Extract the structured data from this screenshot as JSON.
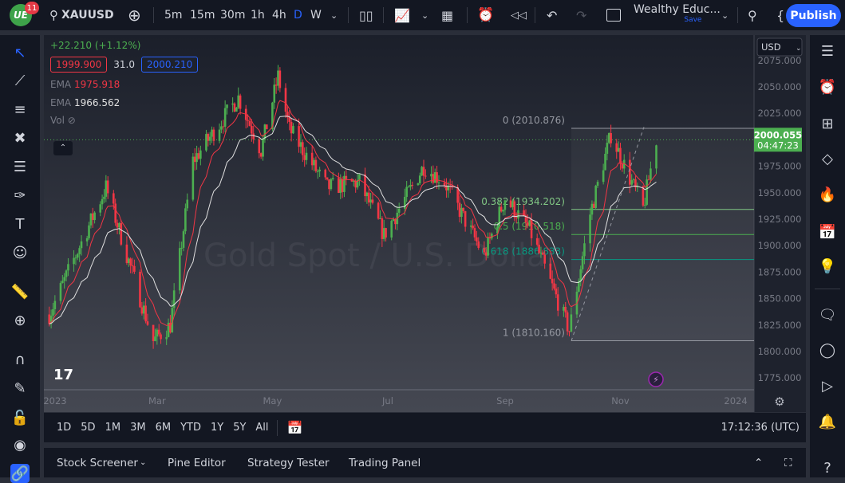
{
  "header": {
    "notifications": "11",
    "symbol": "XAUUSD",
    "intervals": [
      "5m",
      "15m",
      "30m",
      "1h",
      "4h",
      "D",
      "W"
    ],
    "active_interval": "D",
    "layout_name": "Wealthy Educ...",
    "save_label": "Save",
    "publish_label": "Publish"
  },
  "legend": {
    "change": "+22.210 (+1.12%)",
    "bid": "1999.900",
    "spread": "31.0",
    "ask": "2000.210",
    "ema1_label": "EMA",
    "ema1_value": "1975.918",
    "ema2_label": "EMA",
    "ema2_value": "1966.562",
    "vol_label": "Vol"
  },
  "price_axis": {
    "currency": "USD",
    "ticks": [
      "2075.000",
      "2050.000",
      "2025.000",
      "2000.000",
      "1975.000",
      "1950.000",
      "1925.000",
      "1900.000",
      "1875.000",
      "1850.000",
      "1825.000",
      "1800.000",
      "1775.000"
    ],
    "last_price": "2000.055",
    "countdown": "04:47:23"
  },
  "time_axis": {
    "ticks": [
      "2023",
      "Mar",
      "May",
      "Jul",
      "Sep",
      "Nov",
      "2024"
    ]
  },
  "fib": {
    "levels": [
      {
        "ratio": "0",
        "price": "2010.876",
        "label": "0 (2010.876)",
        "color": "#9598a1"
      },
      {
        "ratio": "0.382",
        "price": "1934.202",
        "label": "0.382 (1934.202)",
        "color": "#81c784"
      },
      {
        "ratio": "0.5",
        "price": "1910.518",
        "label": "0.5 (1910.518)",
        "color": "#4caf50"
      },
      {
        "ratio": "0.618",
        "price": "1886.833",
        "label": "0.618 (1886.833)",
        "color": "#089981"
      },
      {
        "ratio": "1",
        "price": "1810.160",
        "label": "1 (1810.160)",
        "color": "#9598a1"
      }
    ]
  },
  "chart_data": {
    "type": "candlestick",
    "ylim": [
      1760,
      2085
    ],
    "price_path": [
      [
        "2023-01-03",
        1835
      ],
      [
        "2023-02-02",
        1955
      ],
      [
        "2023-02-27",
        1810
      ],
      [
        "2023-03-08",
        1825
      ],
      [
        "2023-03-20",
        1980
      ],
      [
        "2023-04-13",
        2040
      ],
      [
        "2023-04-25",
        1990
      ],
      [
        "2023-05-04",
        2060
      ],
      [
        "2023-05-10",
        2010
      ],
      [
        "2023-05-30",
        1955
      ],
      [
        "2023-06-16",
        1960
      ],
      [
        "2023-06-29",
        1910
      ],
      [
        "2023-07-20",
        1975
      ],
      [
        "2023-07-31",
        1960
      ],
      [
        "2023-08-21",
        1890
      ],
      [
        "2023-09-01",
        1945
      ],
      [
        "2023-09-14",
        1915
      ],
      [
        "2023-10-05",
        1820
      ],
      [
        "2023-10-16",
        1930
      ],
      [
        "2023-10-27",
        2005
      ],
      [
        "2023-11-13",
        1935
      ],
      [
        "2023-11-20",
        2000
      ]
    ],
    "colors": {
      "up": "#4caf50",
      "down": "#f23645",
      "ema_fast": "#f23645",
      "ema_slow": "#e0e0e0"
    }
  },
  "watermark": "Gold Spot / U.S. Dollar",
  "range_bar": {
    "ranges": [
      "1D",
      "5D",
      "1M",
      "3M",
      "6M",
      "YTD",
      "1Y",
      "5Y",
      "All"
    ],
    "clock": "17:12:36 (UTC)"
  },
  "bottom_panel": {
    "tabs": [
      "Stock Screener",
      "Pine Editor",
      "Strategy Tester",
      "Trading Panel"
    ]
  }
}
